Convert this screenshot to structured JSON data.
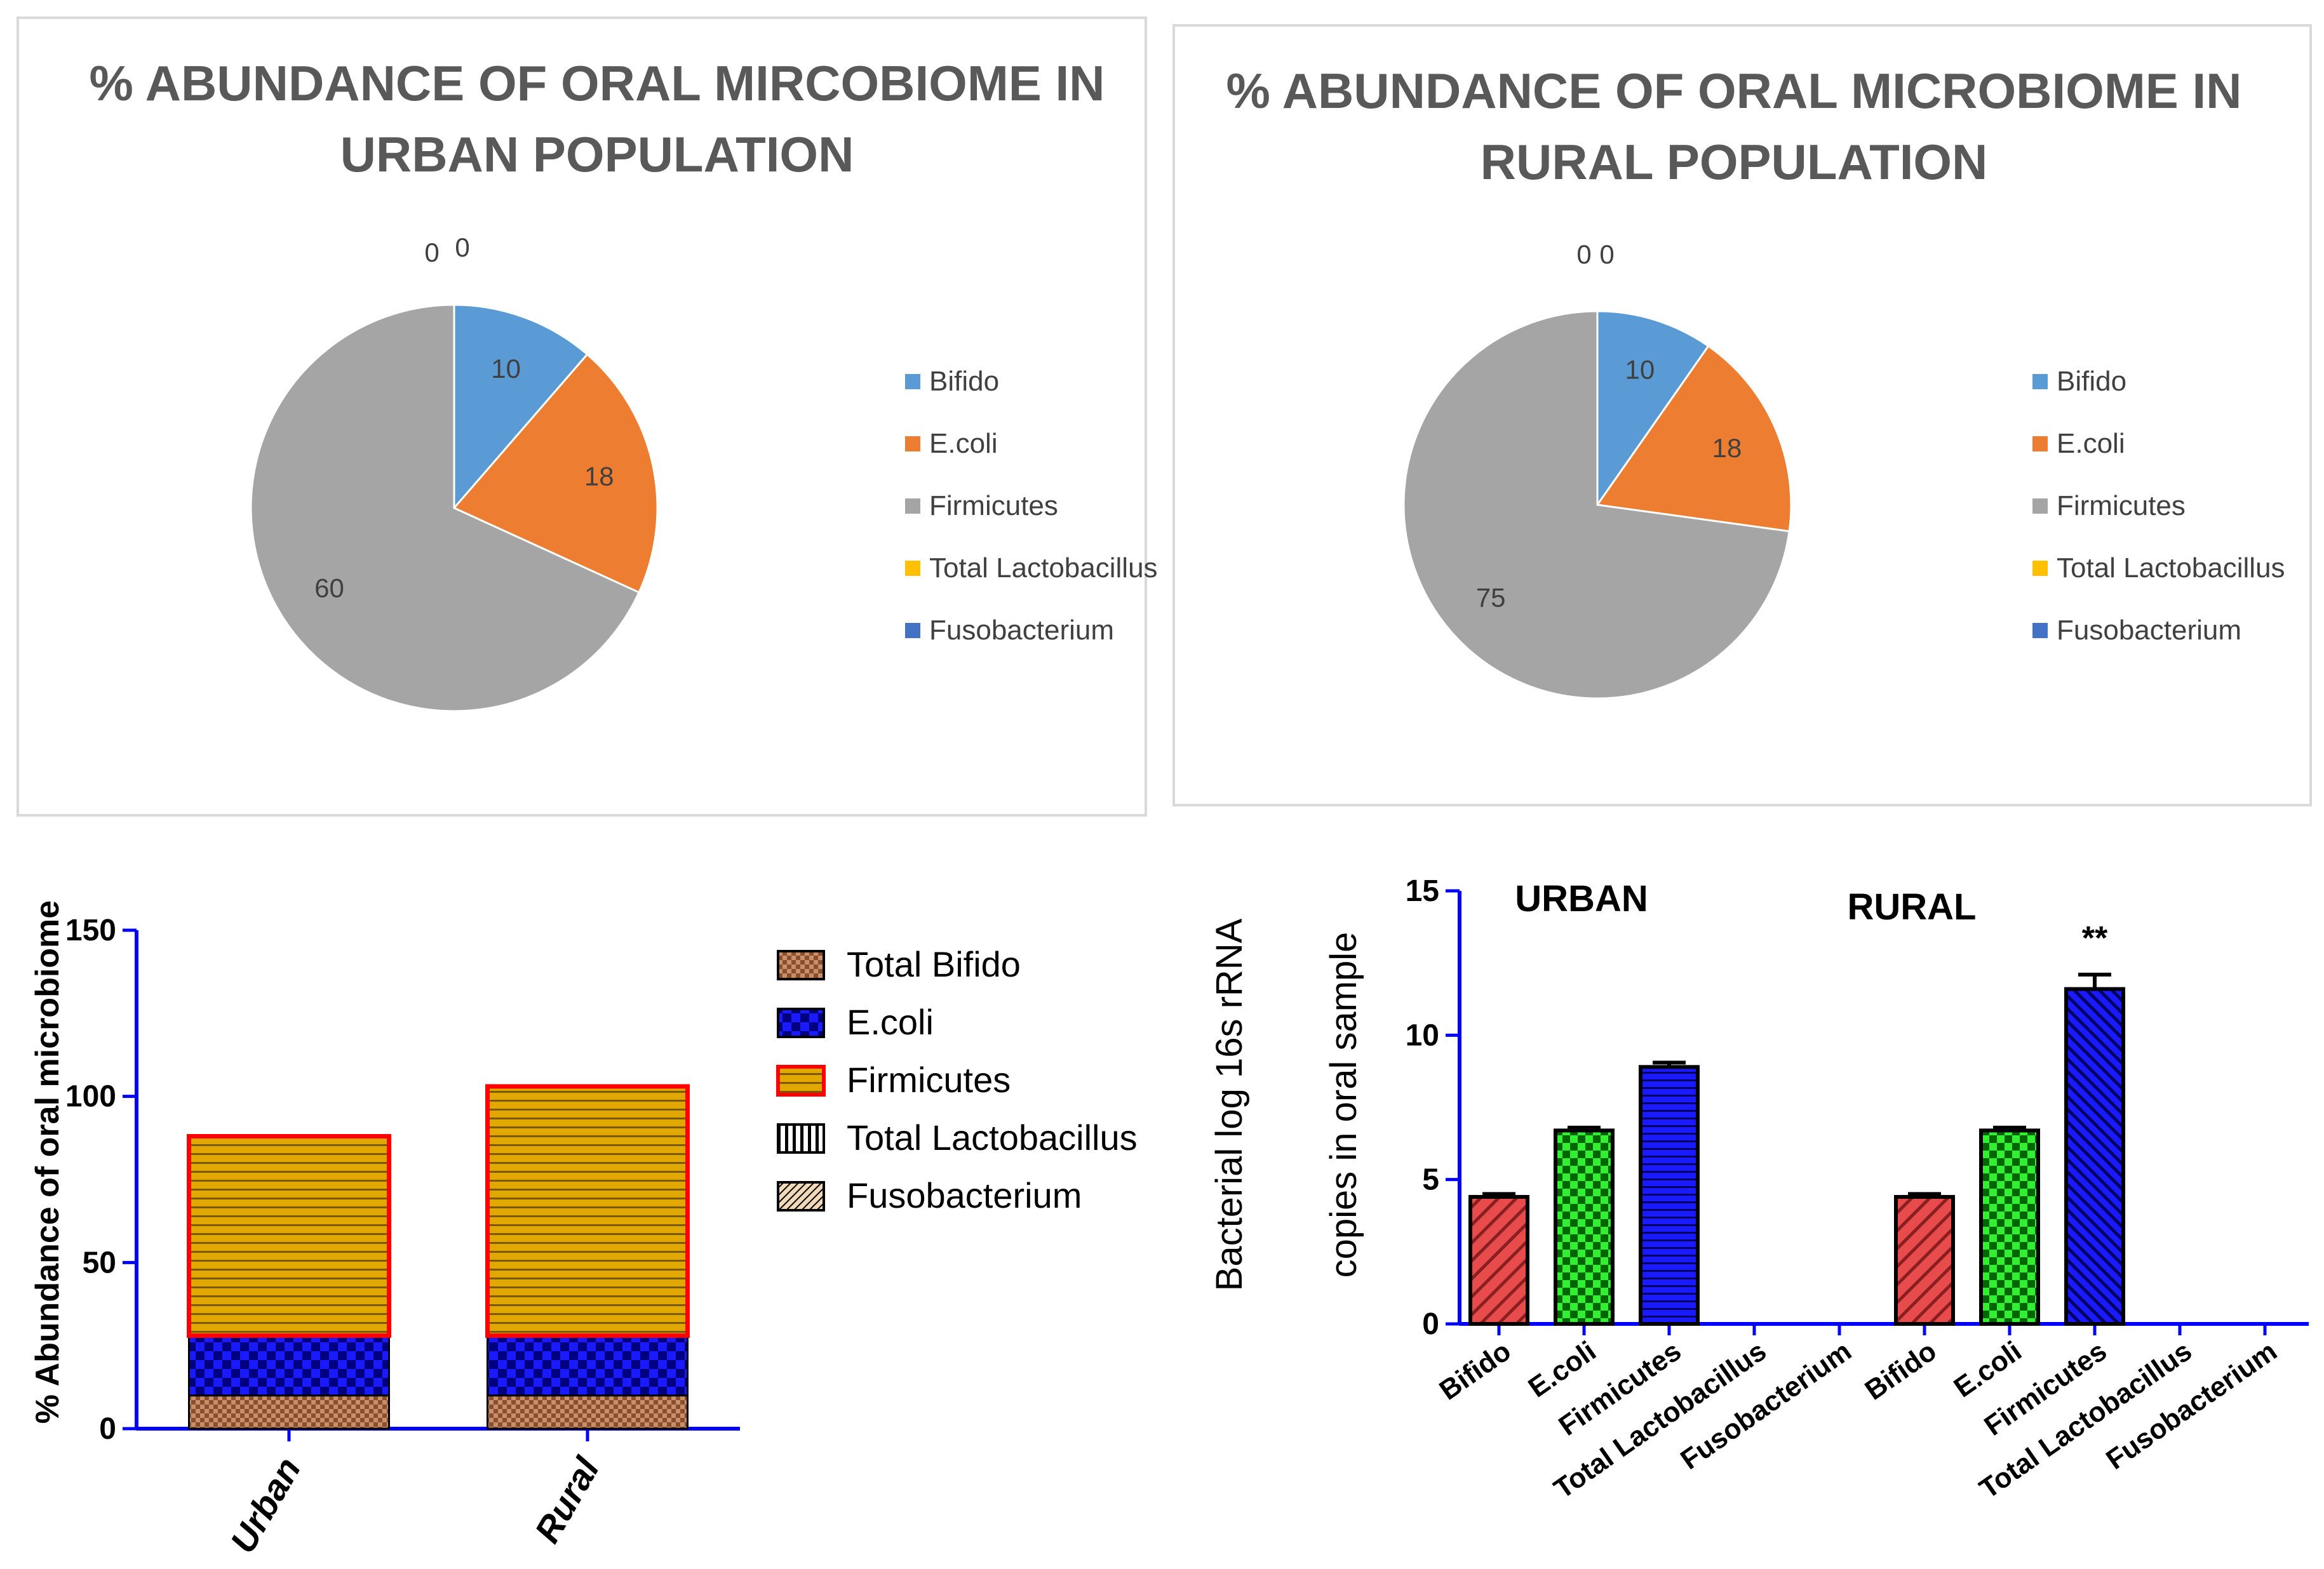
{
  "chart_data": [
    {
      "type": "pie",
      "title_line1": "% ABUNDANCE OF ORAL MIRCOBIOME IN",
      "title_line2": "URBAN POPULATION",
      "labels": [
        "Bifido",
        "E.coli",
        "Firmicutes",
        "Total Lactobacillus",
        "Fusobacterium"
      ],
      "values": [
        10,
        18,
        60,
        0,
        0
      ],
      "value_labels": [
        "10",
        "18",
        "60",
        "0",
        "0"
      ],
      "colors": [
        "#5B9BD5",
        "#ED7D31",
        "#A5A5A5",
        "#FFC000",
        "#4472C4"
      ],
      "legend": "right"
    },
    {
      "type": "pie",
      "title_line1": "% ABUNDANCE OF ORAL MICROBIOME IN",
      "title_line2": "RURAL POPULATION",
      "labels": [
        "Bifido",
        "E.coli",
        "Firmicutes",
        "Total Lactobacillus",
        "Fusobacterium"
      ],
      "values": [
        10,
        18,
        75,
        0,
        0
      ],
      "value_labels": [
        "10",
        "18",
        "75",
        "0",
        "0"
      ],
      "colors": [
        "#5B9BD5",
        "#ED7D31",
        "#A5A5A5",
        "#FFC000",
        "#4472C4"
      ],
      "legend": "right"
    },
    {
      "type": "bar",
      "stacked": true,
      "categories": [
        "Urban",
        "Rural"
      ],
      "series": [
        {
          "name": "Total Bifido",
          "values": [
            10,
            10
          ]
        },
        {
          "name": "E.coli",
          "values": [
            18,
            18
          ]
        },
        {
          "name": "Firmicutes",
          "values": [
            60,
            75
          ]
        },
        {
          "name": "Total Lactobacillus",
          "values": [
            0,
            0
          ]
        },
        {
          "name": "Fusobacterium",
          "values": [
            0,
            0
          ]
        }
      ],
      "ylabel": "% Abundance of oral microbiome",
      "ylim": [
        0,
        150
      ],
      "yticks": [
        "0",
        "50",
        "100",
        "150"
      ],
      "legend": "right"
    },
    {
      "type": "bar",
      "categories": [
        "Bifido",
        "E.coli",
        "Firmicutes",
        "Total Lactobacillus",
        "Fusobacterium",
        "Bifido",
        "E.coli",
        "Firmicutes",
        "Total Lactobacillus",
        "Fusobacterium"
      ],
      "values": [
        4.4,
        6.7,
        8.9,
        0,
        0,
        4.4,
        6.7,
        11.6,
        0,
        0
      ],
      "errors": [
        0.1,
        0.1,
        0.15,
        0,
        0,
        0.1,
        0.1,
        0.5,
        0,
        0
      ],
      "group_labels": [
        "URBAN",
        "RURAL"
      ],
      "annotation": "**",
      "ylabel_line1": "Bacterial log 16s rRNA",
      "ylabel_line2": "copies in oral sample",
      "ylim": [
        0,
        15
      ],
      "yticks": [
        "0",
        "5",
        "10",
        "15"
      ]
    }
  ]
}
